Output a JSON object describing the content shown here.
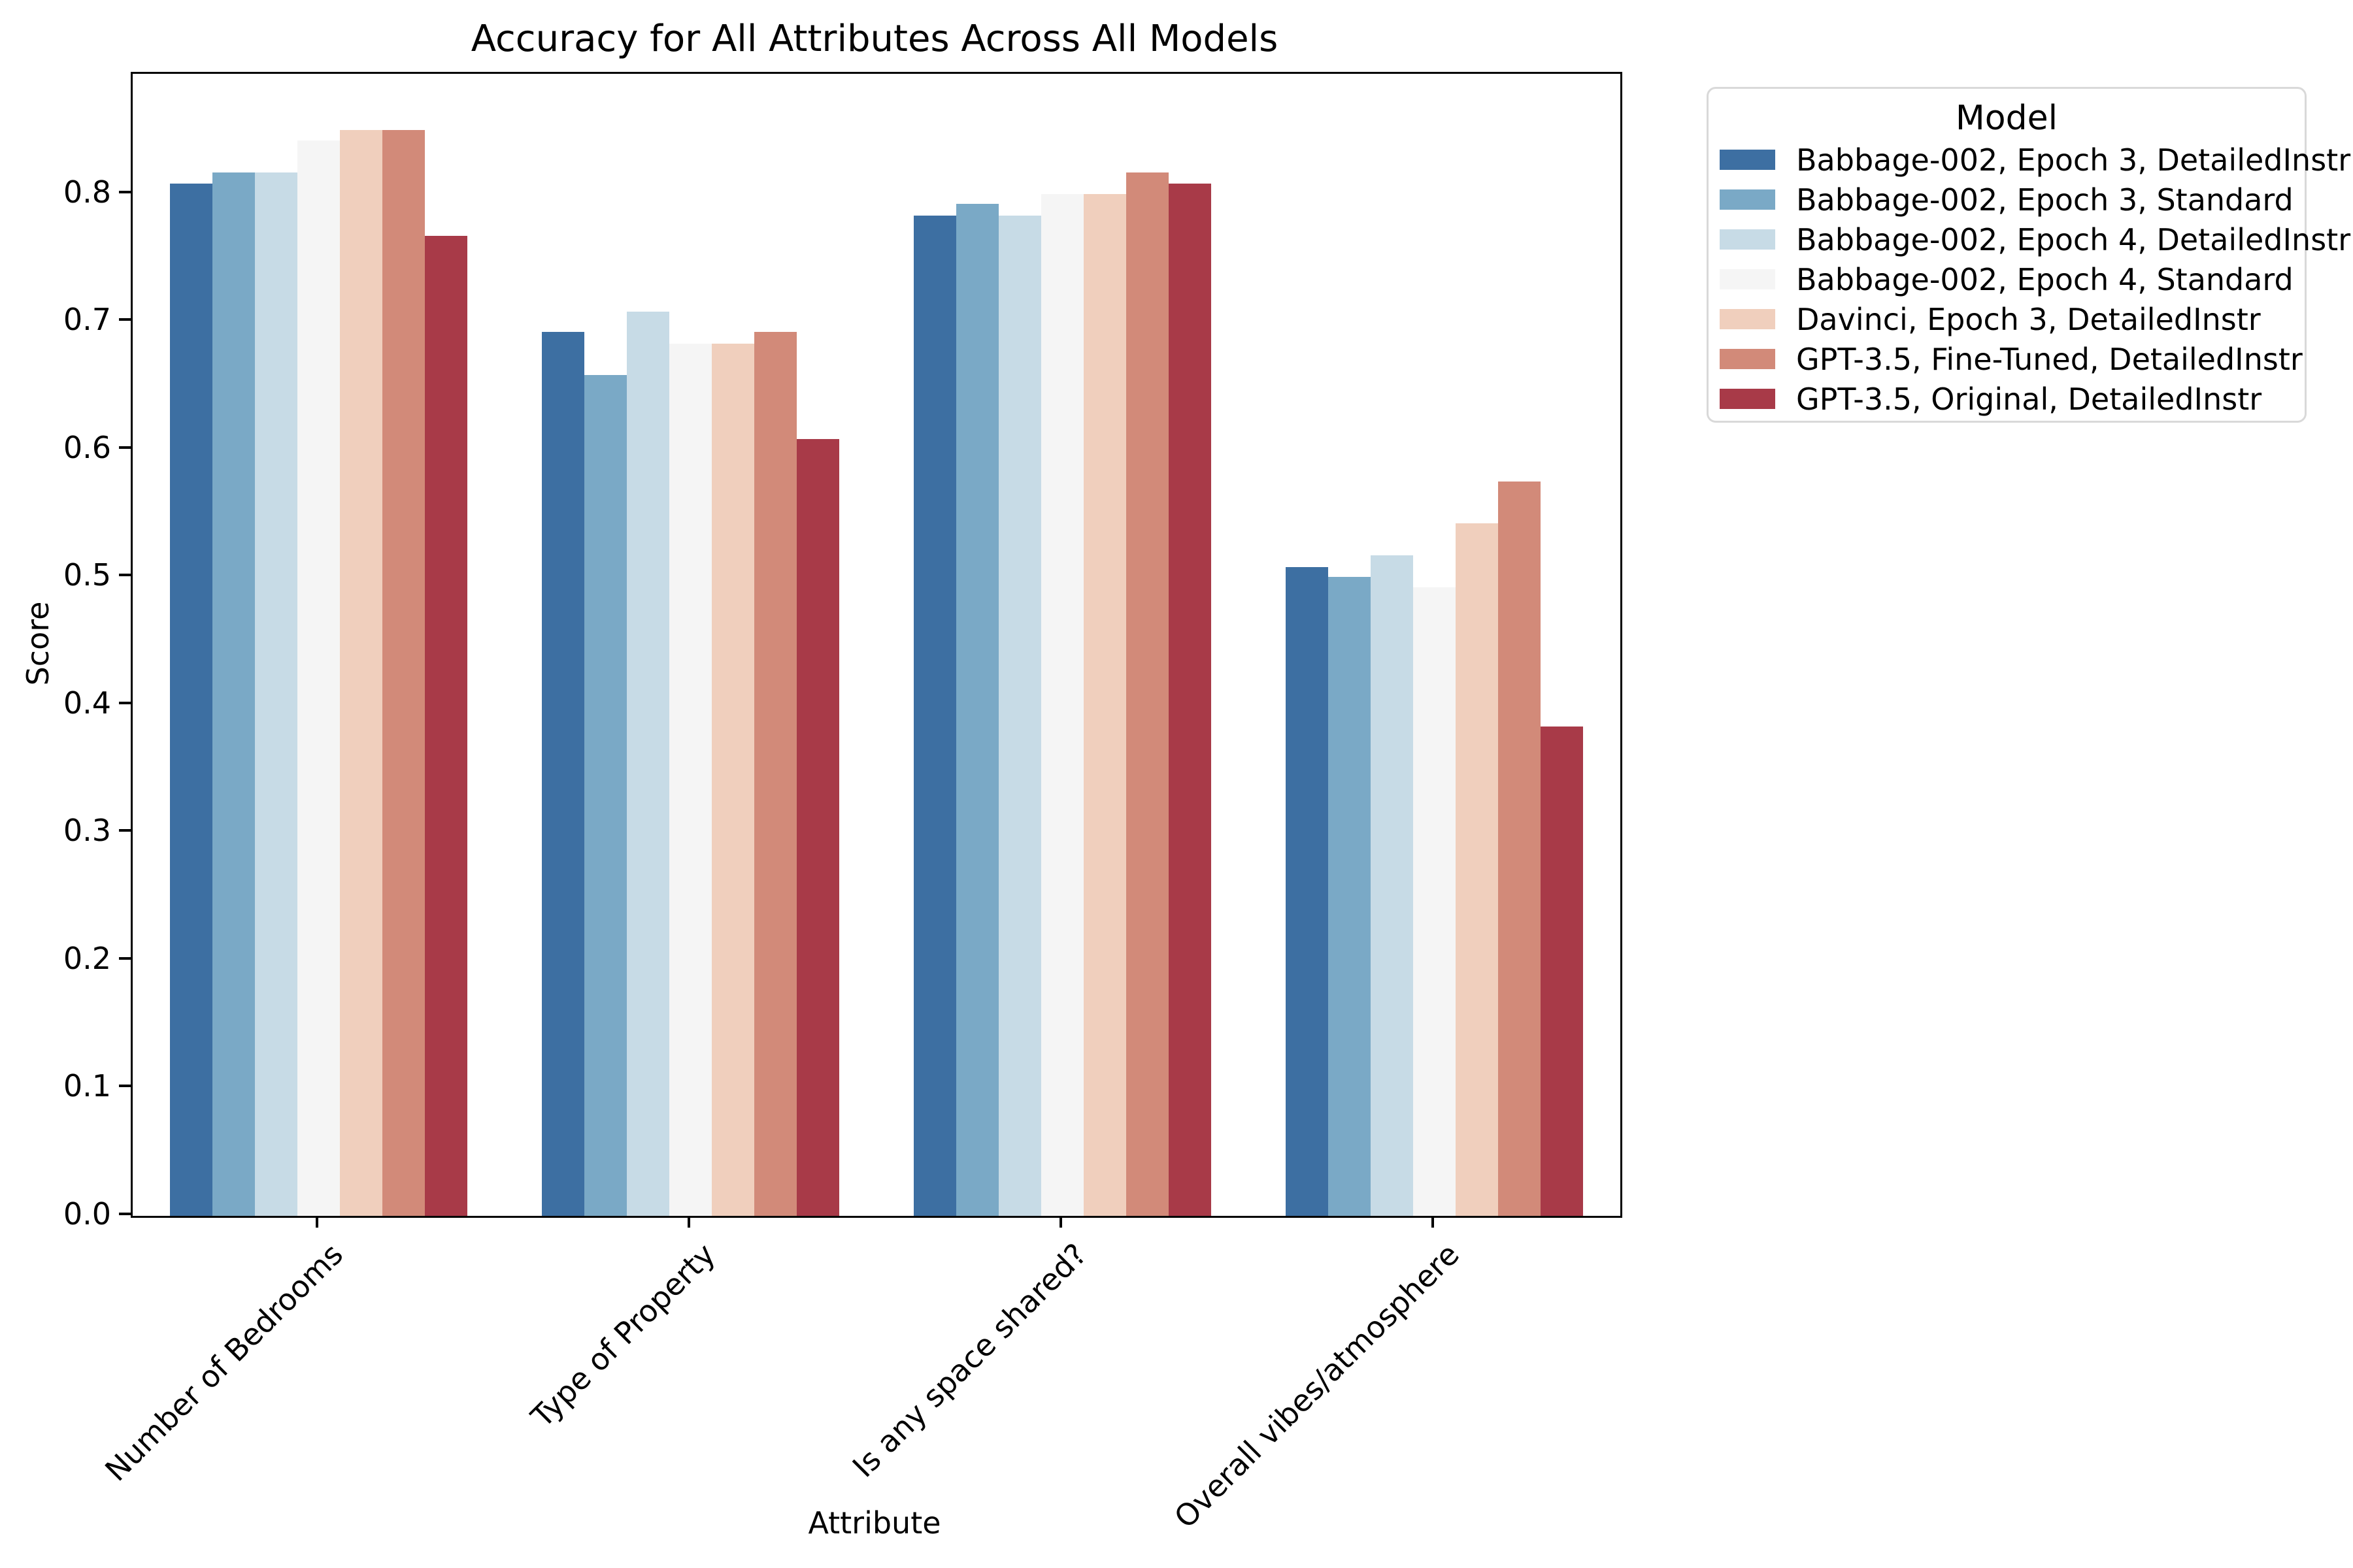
{
  "chart_data": {
    "type": "bar",
    "title": "Accuracy for All Attributes Across All Models",
    "xlabel": "Attribute",
    "ylabel": "Score",
    "legend_title": "Model",
    "legend_position": "outside upper right",
    "grid": false,
    "categories": [
      "Number of Bedrooms",
      "Type of Property",
      "Is any space shared?",
      "Overall vibes/atmosphere"
    ],
    "series": [
      {
        "name": "Babbage-002, Epoch 3, DetailedInstr",
        "color": "#3d6fa2",
        "values": [
          0.808,
          0.692,
          0.783,
          0.508
        ]
      },
      {
        "name": "Babbage-002, Epoch 3, Standard",
        "color": "#7aa9c6",
        "values": [
          0.817,
          0.658,
          0.792,
          0.5
        ]
      },
      {
        "name": "Babbage-002, Epoch 4, DetailedInstr",
        "color": "#c7dbe6",
        "values": [
          0.817,
          0.708,
          0.783,
          0.517
        ]
      },
      {
        "name": "Babbage-002, Epoch 4, Standard",
        "color": "#f5f5f5",
        "values": [
          0.842,
          0.683,
          0.8,
          0.492
        ]
      },
      {
        "name": "Davinci, Epoch 3, DetailedInstr",
        "color": "#f0cfbd",
        "values": [
          0.85,
          0.683,
          0.8,
          0.542
        ]
      },
      {
        "name": "GPT-3.5, Fine-Tuned, DetailedInstr",
        "color": "#d28a79",
        "values": [
          0.85,
          0.692,
          0.817,
          0.575
        ]
      },
      {
        "name": "GPT-3.5, Original, DetailedInstr",
        "color": "#a83a48",
        "values": [
          0.767,
          0.608,
          0.808,
          0.383
        ]
      }
    ],
    "ylim": [
      0,
      0.894
    ],
    "yticks": [
      "0.0",
      "0.1",
      "0.2",
      "0.3",
      "0.4",
      "0.5",
      "0.6",
      "0.7",
      "0.8"
    ],
    "bar_group_width_fraction": 0.8
  }
}
